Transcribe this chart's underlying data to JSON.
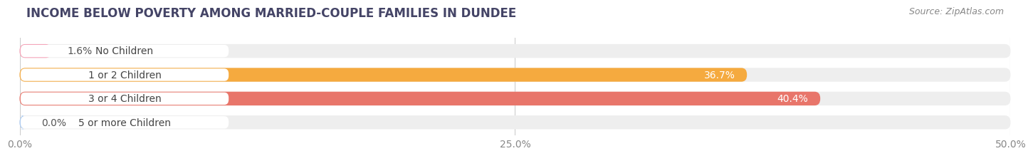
{
  "title": "INCOME BELOW POVERTY AMONG MARRIED-COUPLE FAMILIES IN DUNDEE",
  "source": "Source: ZipAtlas.com",
  "categories": [
    "No Children",
    "1 or 2 Children",
    "3 or 4 Children",
    "5 or more Children"
  ],
  "values": [
    1.6,
    36.7,
    40.4,
    0.0
  ],
  "bar_colors": [
    "#f5a0b5",
    "#f5aa3f",
    "#e8756a",
    "#a8c8f0"
  ],
  "xlim": [
    0,
    50.0
  ],
  "xticks": [
    0.0,
    25.0,
    50.0
  ],
  "xtick_labels": [
    "0.0%",
    "25.0%",
    "50.0%"
  ],
  "background_color": "#ffffff",
  "bar_bg_color": "#eeeeee",
  "label_bg_color": "#ffffff",
  "title_fontsize": 12,
  "source_fontsize": 9,
  "label_fontsize": 10,
  "tick_fontsize": 10,
  "bar_height": 0.58,
  "value_threshold": 5.0,
  "grid_color": "#cccccc"
}
